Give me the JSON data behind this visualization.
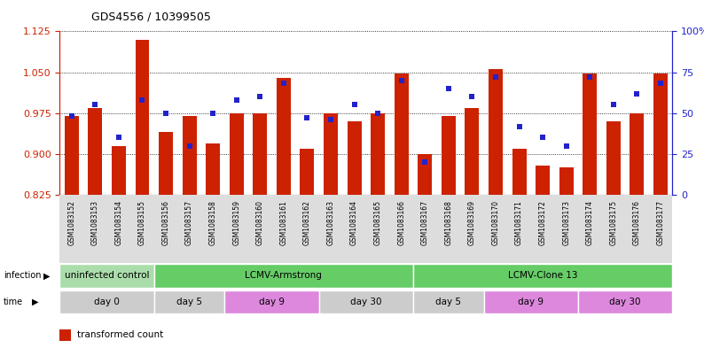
{
  "title": "GDS4556 / 10399505",
  "samples": [
    "GSM1083152",
    "GSM1083153",
    "GSM1083154",
    "GSM1083155",
    "GSM1083156",
    "GSM1083157",
    "GSM1083158",
    "GSM1083159",
    "GSM1083160",
    "GSM1083161",
    "GSM1083162",
    "GSM1083163",
    "GSM1083164",
    "GSM1083165",
    "GSM1083166",
    "GSM1083167",
    "GSM1083168",
    "GSM1083169",
    "GSM1083170",
    "GSM1083171",
    "GSM1083172",
    "GSM1083173",
    "GSM1083174",
    "GSM1083175",
    "GSM1083176",
    "GSM1083177"
  ],
  "bar_values": [
    0.97,
    0.985,
    0.915,
    1.11,
    0.94,
    0.97,
    0.92,
    0.975,
    0.975,
    1.04,
    0.91,
    0.975,
    0.96,
    0.975,
    1.048,
    0.9,
    0.97,
    0.985,
    1.055,
    0.91,
    0.878,
    0.875,
    1.048,
    0.96,
    0.975,
    1.048
  ],
  "dot_values": [
    48,
    55,
    35,
    58,
    50,
    30,
    50,
    58,
    60,
    68,
    47,
    46,
    55,
    50,
    70,
    20,
    65,
    60,
    72,
    42,
    35,
    30,
    72,
    55,
    62,
    68
  ],
  "bar_base": 0.825,
  "ylim_left": [
    0.825,
    1.125
  ],
  "ylim_right": [
    0,
    100
  ],
  "yticks_left": [
    0.825,
    0.9,
    0.975,
    1.05,
    1.125
  ],
  "yticks_right": [
    0,
    25,
    50,
    75,
    100
  ],
  "bar_color": "#cc2200",
  "dot_color": "#2222cc",
  "infection_labels": [
    {
      "text": "uninfected control",
      "start": 0,
      "end": 4,
      "color": "#aaddaa"
    },
    {
      "text": "LCMV-Armstrong",
      "start": 4,
      "end": 15,
      "color": "#66cc66"
    },
    {
      "text": "LCMV-Clone 13",
      "start": 15,
      "end": 26,
      "color": "#66cc66"
    }
  ],
  "time_labels": [
    {
      "text": "day 0",
      "start": 0,
      "end": 4,
      "color": "#cccccc"
    },
    {
      "text": "day 5",
      "start": 4,
      "end": 7,
      "color": "#cccccc"
    },
    {
      "text": "day 9",
      "start": 7,
      "end": 11,
      "color": "#dd88dd"
    },
    {
      "text": "day 30",
      "start": 11,
      "end": 15,
      "color": "#cccccc"
    },
    {
      "text": "day 5",
      "start": 15,
      "end": 18,
      "color": "#cccccc"
    },
    {
      "text": "day 9",
      "start": 18,
      "end": 22,
      "color": "#dd88dd"
    },
    {
      "text": "day 30",
      "start": 22,
      "end": 26,
      "color": "#dd88dd"
    }
  ]
}
